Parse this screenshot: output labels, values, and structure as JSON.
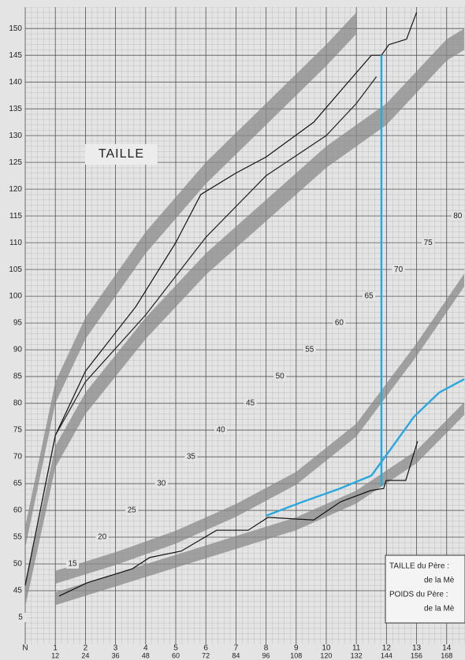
{
  "chart_data": {
    "type": "line",
    "title": "TAILLE",
    "xlim": [
      0,
      175
    ],
    "xticks": [
      {
        "value": 0,
        "label": "N"
      },
      {
        "value": 12,
        "label": "1"
      },
      {
        "value": 24,
        "label": "2"
      },
      {
        "value": 36,
        "label": "3"
      },
      {
        "value": 48,
        "label": "4"
      },
      {
        "value": 60,
        "label": "5"
      },
      {
        "value": 72,
        "label": "6"
      },
      {
        "value": 84,
        "label": "7"
      },
      {
        "value": 96,
        "label": "8"
      },
      {
        "value": 108,
        "label": "9"
      },
      {
        "value": 120,
        "label": "10"
      },
      {
        "value": 132,
        "label": "11"
      },
      {
        "value": 144,
        "label": "12"
      },
      {
        "value": 156,
        "label": "13"
      },
      {
        "value": 168,
        "label": "14"
      }
    ],
    "x2ticks": [
      12,
      24,
      36,
      48,
      60,
      72,
      84,
      96,
      108,
      120,
      132,
      144,
      156,
      168
    ],
    "ylim": [
      35,
      154
    ],
    "yticks": [
      45,
      50,
      55,
      60,
      65,
      70,
      75,
      80,
      85,
      90,
      95,
      100,
      105,
      110,
      115,
      120,
      125,
      130,
      135,
      140,
      145,
      150
    ],
    "y2lim": [
      0,
      119
    ],
    "y2ticks": [
      5,
      15,
      20,
      25,
      30,
      35,
      40,
      45,
      50,
      55,
      60,
      65,
      70,
      75,
      80
    ],
    "grid": true,
    "bands": [
      {
        "color": "#8a8a8a",
        "x": [
          0,
          12,
          24,
          48,
          72,
          96,
          120,
          132
        ],
        "lower": [
          53,
          80,
          92,
          108,
          121,
          132,
          143,
          149
        ],
        "upper": [
          57,
          84,
          96,
          112,
          125,
          136,
          147,
          153
        ]
      },
      {
        "color": "#8a8a8a",
        "x": [
          0,
          12,
          24,
          48,
          72,
          96,
          120,
          144,
          168,
          175
        ],
        "lower": [
          42,
          68,
          78,
          92,
          104,
          114,
          124,
          132,
          144,
          146
        ],
        "upper": [
          46,
          72,
          82,
          96,
          108,
          118,
          128,
          136,
          148,
          150
        ]
      },
      {
        "color": "#8a8a8a",
        "axis": "y2",
        "x": [
          12,
          36,
          60,
          84,
          108,
          132,
          156,
          175
        ],
        "lower": [
          11.3,
          14.8,
          18.8,
          23.8,
          29.8,
          38.8,
          53.8,
          66.8
        ],
        "upper": [
          13.7,
          17.2,
          21.2,
          26.2,
          32.2,
          41.2,
          56.2,
          69.2
        ]
      },
      {
        "color": "#8a8a8a",
        "axis": "y2",
        "x": [
          12,
          36,
          60,
          84,
          108,
          132,
          156,
          175
        ],
        "lower": [
          7.3,
          10.8,
          14.3,
          17.8,
          21.3,
          26.3,
          33.8,
          42.8
        ],
        "upper": [
          9.7,
          13.2,
          16.7,
          20.2,
          23.7,
          28.7,
          36.2,
          45.2
        ]
      }
    ],
    "series": [
      {
        "color": "#111111",
        "x": [
          0,
          12,
          24,
          44,
          60,
          70,
          84,
          96,
          115,
          126,
          138,
          142,
          145,
          152,
          156
        ],
        "values": [
          46,
          74,
          86,
          98,
          110,
          119,
          123,
          126,
          132.5,
          138.5,
          145,
          145,
          147,
          148,
          153
        ]
      },
      {
        "color": "#222222",
        "x": [
          0,
          12,
          24,
          48,
          72,
          96,
          120,
          132,
          140
        ],
        "values": [
          46,
          74,
          84,
          96.5,
          111,
          122.5,
          130,
          136,
          141
        ]
      },
      {
        "color": "#111111",
        "axis": "y2",
        "x": [
          13.5,
          24.8,
          42.7,
          49.6,
          62.2,
          76.3,
          88.9,
          96.8,
          115,
          125.7,
          137.6,
          142.9,
          143.9,
          151.7,
          156.4
        ],
        "values": [
          9,
          11.5,
          14.1,
          16.2,
          17.4,
          21.3,
          21.3,
          23.7,
          23.2,
          26.6,
          28.7,
          29.1,
          30.6,
          30.6,
          37.9
        ]
      },
      {
        "color": "#29a8e0",
        "axis": "y2",
        "x": [
          96,
          110,
          125,
          138,
          145,
          155,
          165,
          175
        ],
        "values": [
          24,
          26.5,
          29,
          31.5,
          36,
          42.5,
          47,
          49.5
        ]
      },
      {
        "color": "#29a8e0",
        "x": [
          142,
          142
        ],
        "values": [
          145,
          64.5
        ]
      }
    ],
    "info_box": [
      "TAILLE du Père :",
      "de la Mè",
      "POIDS du Père :",
      "de la Mè"
    ]
  }
}
